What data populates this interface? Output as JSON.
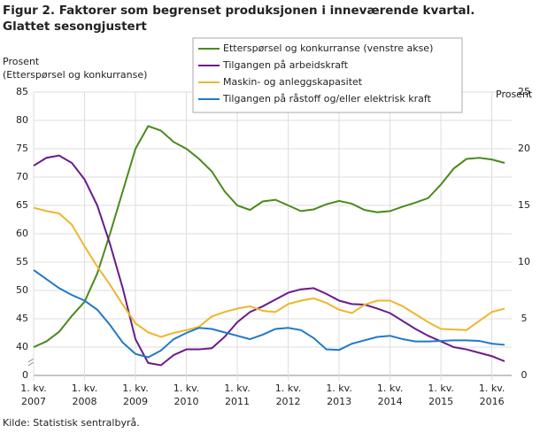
{
  "chart_data": {
    "type": "line",
    "title": "Figur 2. Faktorer som begrenset produksjonen i inneværende kvartal. Glattet sesongjustert",
    "y_label": "Prosent\n(Etterspørsel  og konkurranse)",
    "y2_label": "Prosent",
    "source": "Kilde: Statistisk sentralbyrå.",
    "categories": [
      "1. kv.\n2007",
      null,
      null,
      null,
      "1. kv.\n2008",
      null,
      null,
      null,
      "1. kv.\n2009",
      null,
      null,
      null,
      "1. kv.\n2010",
      null,
      null,
      null,
      "1. kv.\n2011",
      null,
      null,
      null,
      "1. kv.\n2012",
      null,
      null,
      null,
      "1. kv.\n2013",
      null,
      null,
      null,
      "1. kv.\n2014",
      null,
      null,
      null,
      "1. kv.\n2015",
      null,
      null,
      null,
      "1. kv.\n2016",
      null
    ],
    "ylim": [
      0,
      85
    ],
    "yticks": [
      0,
      40,
      45,
      50,
      55,
      60,
      65,
      70,
      75,
      80,
      85
    ],
    "y_axis_break": true,
    "y2lim": [
      0,
      25
    ],
    "y2ticks": [
      0,
      5,
      10,
      15,
      20,
      25
    ],
    "grid": true,
    "series": [
      {
        "name": "Etterspørsel og konkurranse (venstre akse)",
        "color": "#4a8a1c",
        "values": [
          40,
          41,
          42.7,
          45.5,
          48,
          53,
          60,
          67.5,
          75,
          79,
          78.2,
          76.2,
          75,
          73.2,
          71,
          67.5,
          65,
          64.2,
          65.7,
          66,
          65,
          64,
          64.3,
          65.2,
          65.8,
          65.3,
          64.2,
          63.8,
          64,
          64.8,
          65.5,
          66.3,
          68.7,
          71.5,
          73.2,
          73.4,
          73.1,
          72.5
        ]
      },
      {
        "name": "Tilgangen på arbeidskraft",
        "color": "#6a1b8a",
        "axis": "y2",
        "values": [
          18.5,
          19.2,
          19.4,
          18.75,
          17.3,
          15,
          11.6,
          7.7,
          3.2,
          1.1,
          0.9,
          1.8,
          2.3,
          2.3,
          2.4,
          3.4,
          4.7,
          5.6,
          6.1,
          6.7,
          7.3,
          7.6,
          7.7,
          7.2,
          6.6,
          6.3,
          6.25,
          5.9,
          5.5,
          4.8,
          4.1,
          3.5,
          3,
          2.5,
          2.3,
          2,
          1.7,
          1.25
        ]
      },
      {
        "name": "Maskin- og anleggskapasitet",
        "color": "#f0b52e",
        "axis": "y2",
        "values": [
          14.8,
          14.5,
          14.3,
          13.3,
          11.4,
          9.6,
          8,
          6.25,
          4.6,
          3.8,
          3.4,
          3.75,
          4,
          4.3,
          5.2,
          5.6,
          5.9,
          6.1,
          5.7,
          5.6,
          6.3,
          6.6,
          6.8,
          6.4,
          5.8,
          5.5,
          6.25,
          6.6,
          6.6,
          6.1,
          5.4,
          4.7,
          4.1,
          4.05,
          4,
          4.8,
          5.6,
          5.9
        ]
      },
      {
        "name": "Tilgangen på råstoff og/eller elektrisk kraft",
        "color": "#1f7ac8",
        "axis": "y2",
        "values": [
          9.3,
          8.5,
          7.7,
          7.1,
          6.6,
          5.8,
          4.45,
          2.9,
          1.9,
          1.6,
          2.2,
          3.2,
          3.75,
          4.2,
          4.1,
          3.8,
          3.5,
          3.2,
          3.6,
          4.1,
          4.2,
          4,
          3.3,
          2.3,
          2.25,
          2.8,
          3.1,
          3.4,
          3.5,
          3.2,
          3,
          3,
          3.05,
          3.1,
          3.1,
          3.05,
          2.8,
          2.7
        ]
      }
    ]
  }
}
